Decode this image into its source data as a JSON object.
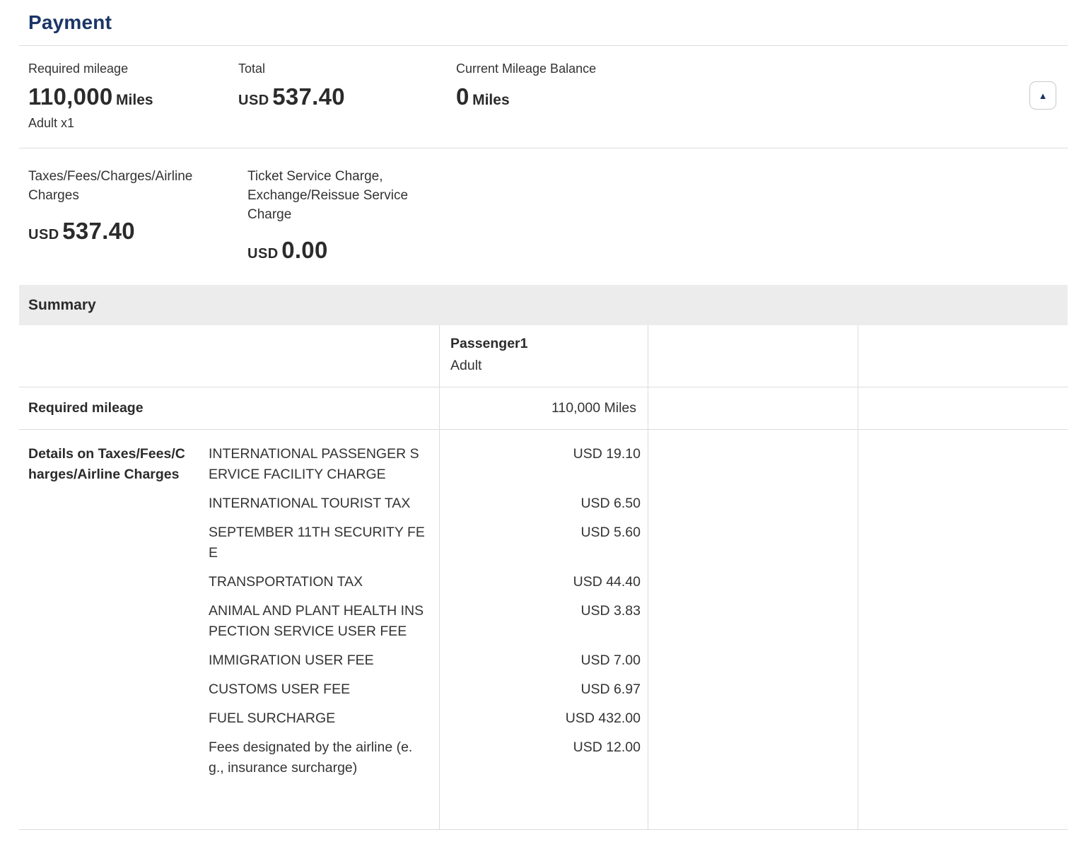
{
  "page": {
    "title": "Payment"
  },
  "overview": {
    "required_mileage": {
      "label": "Required mileage",
      "value": "110,000",
      "unit": "Miles",
      "sub": "Adult x1"
    },
    "total": {
      "label": "Total",
      "currency": "USD",
      "value": "537.40"
    },
    "balance": {
      "label": "Current Mileage Balance",
      "value": "0",
      "unit": "Miles"
    },
    "collapse_icon_glyph": "▲"
  },
  "charges": {
    "taxes": {
      "label": "Taxes/Fees/Charges/Airline Charges",
      "currency": "USD",
      "value": "537.40"
    },
    "service": {
      "label": "Ticket Service Charge, Exchange/Reissue Service Charge",
      "currency": "USD",
      "value": "0.00"
    }
  },
  "summary": {
    "title": "Summary",
    "passenger": {
      "name": "Passenger1",
      "type": "Adult"
    },
    "required_mileage_row": {
      "label": "Required mileage",
      "value": "110,000 Miles"
    },
    "details_row": {
      "label": "Details on Taxes/Fees/Charges/Airline Charges",
      "fees": [
        {
          "name": "INTERNATIONAL PASSENGER SERVICE FACILITY CHARGE",
          "amount": "USD 19.10"
        },
        {
          "name": "INTERNATIONAL TOURIST TAX",
          "amount": "USD 6.50"
        },
        {
          "name": "SEPTEMBER 11TH SECURITY FEE",
          "amount": "USD 5.60"
        },
        {
          "name": "TRANSPORTATION TAX",
          "amount": "USD 44.40"
        },
        {
          "name": "ANIMAL AND PLANT HEALTH INSPECTION SERVICE USER FEE",
          "amount": "USD 3.83"
        },
        {
          "name": "IMMIGRATION USER FEE",
          "amount": "USD 7.00"
        },
        {
          "name": "CUSTOMS USER FEE",
          "amount": "USD 6.97"
        },
        {
          "name": "FUEL SURCHARGE",
          "amount": "USD 432.00"
        },
        {
          "name": "Fees designated by the airline (e.g., insurance surcharge)",
          "amount": "USD 12.00"
        }
      ]
    }
  },
  "colors": {
    "accent_navy": "#1b3566",
    "summary_bar_bg": "#ececec",
    "border": "#dcdcdc",
    "text": "#2f2f2f"
  }
}
